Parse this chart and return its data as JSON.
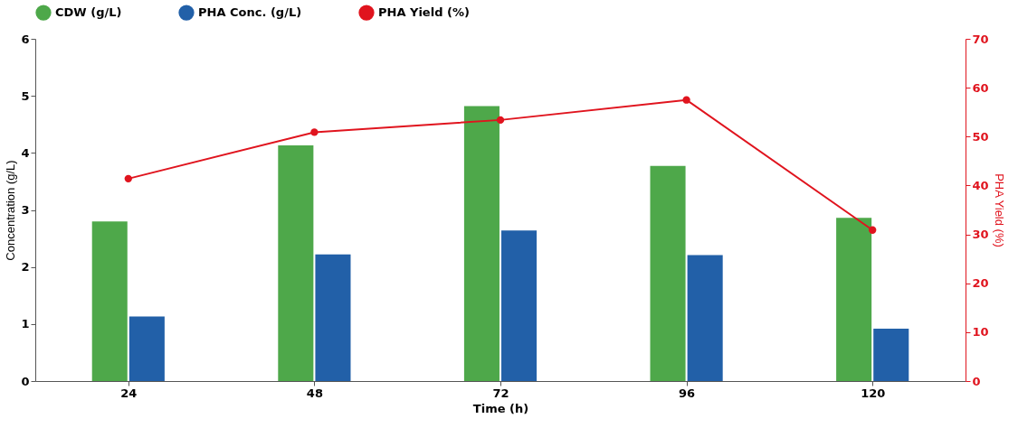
{
  "chart_data": {
    "type": "bar",
    "xlabel": "Time (h)",
    "ylabel": "Concentration (g/L)",
    "y2label": "PHA Yield (%)",
    "categories": [
      "24",
      "48",
      "72",
      "96",
      "120"
    ],
    "series": [
      {
        "name": "CDW (g/L)",
        "color": "#4ea84a",
        "values": [
          2.8,
          4.13,
          4.82,
          3.77,
          2.86
        ]
      },
      {
        "name": "PHA Conc. (g/L)",
        "color": "#2260a8",
        "values": [
          1.13,
          2.22,
          2.64,
          2.21,
          0.92
        ]
      },
      {
        "name": "PHA Yield (%)",
        "type": "line",
        "axis": "y2",
        "color": "#e0141e",
        "values": [
          41.4,
          50.9,
          53.4,
          57.5,
          30.9
        ]
      }
    ],
    "ylim": [
      0,
      6
    ],
    "yticks": [
      0,
      1,
      2,
      3,
      4,
      5,
      6
    ],
    "y2lim": [
      0,
      70
    ],
    "y2ticks": [
      0,
      10,
      20,
      30,
      40,
      50,
      60,
      70
    ],
    "grid": false,
    "legend": "top",
    "marker": "circle"
  }
}
